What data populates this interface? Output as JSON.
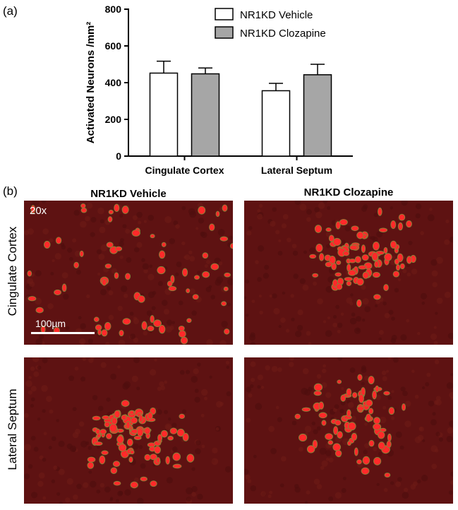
{
  "panel_a_label": "(a)",
  "panel_b_label": "(b)",
  "chart_data": {
    "type": "bar",
    "categories": [
      "Cingulate Cortex",
      "Lateral Septum"
    ],
    "series": [
      {
        "name": "NR1KD Vehicle",
        "values": [
          452,
          356
        ],
        "errors": [
          65,
          40
        ],
        "color": "#ffffff"
      },
      {
        "name": "NR1KD Clozapine",
        "values": [
          448,
          443
        ],
        "errors": [
          32,
          57
        ],
        "color": "#a6a6a6"
      }
    ],
    "ylabel": "Activated Neurons /mm²",
    "ylim": [
      0,
      800
    ],
    "yticks": [
      0,
      200,
      400,
      600,
      800
    ],
    "grid": false,
    "legend_position": "top-right"
  },
  "micrographs": {
    "col_headers": [
      "NR1KD Vehicle",
      "NR1KD Clozapine"
    ],
    "row_labels": [
      "Cingulate Cortex",
      "Lateral Septum"
    ],
    "magnification": "20x",
    "scale_bar_label": "100µm",
    "background_color": "#5e1212",
    "cell_color": "#ff2a2a"
  }
}
